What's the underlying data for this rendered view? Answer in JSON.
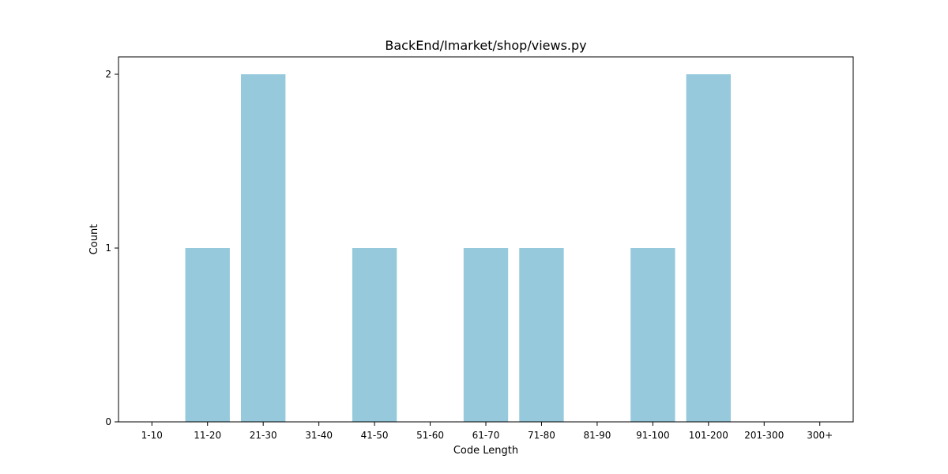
{
  "chart_data": {
    "type": "bar",
    "title": "BackEnd/Imarket/shop/views.py",
    "xlabel": "Code Length",
    "ylabel": "Count",
    "categories": [
      "1-10",
      "11-20",
      "21-30",
      "31-40",
      "41-50",
      "51-60",
      "61-70",
      "71-80",
      "81-90",
      "91-100",
      "101-200",
      "201-300",
      "300+"
    ],
    "values": [
      0,
      1,
      2,
      0,
      1,
      0,
      1,
      1,
      0,
      1,
      2,
      0,
      0
    ],
    "yticks": [
      0,
      1,
      2
    ],
    "ylim": [
      0,
      2.1
    ],
    "grid": false,
    "bar_color": "#96c9dc"
  }
}
